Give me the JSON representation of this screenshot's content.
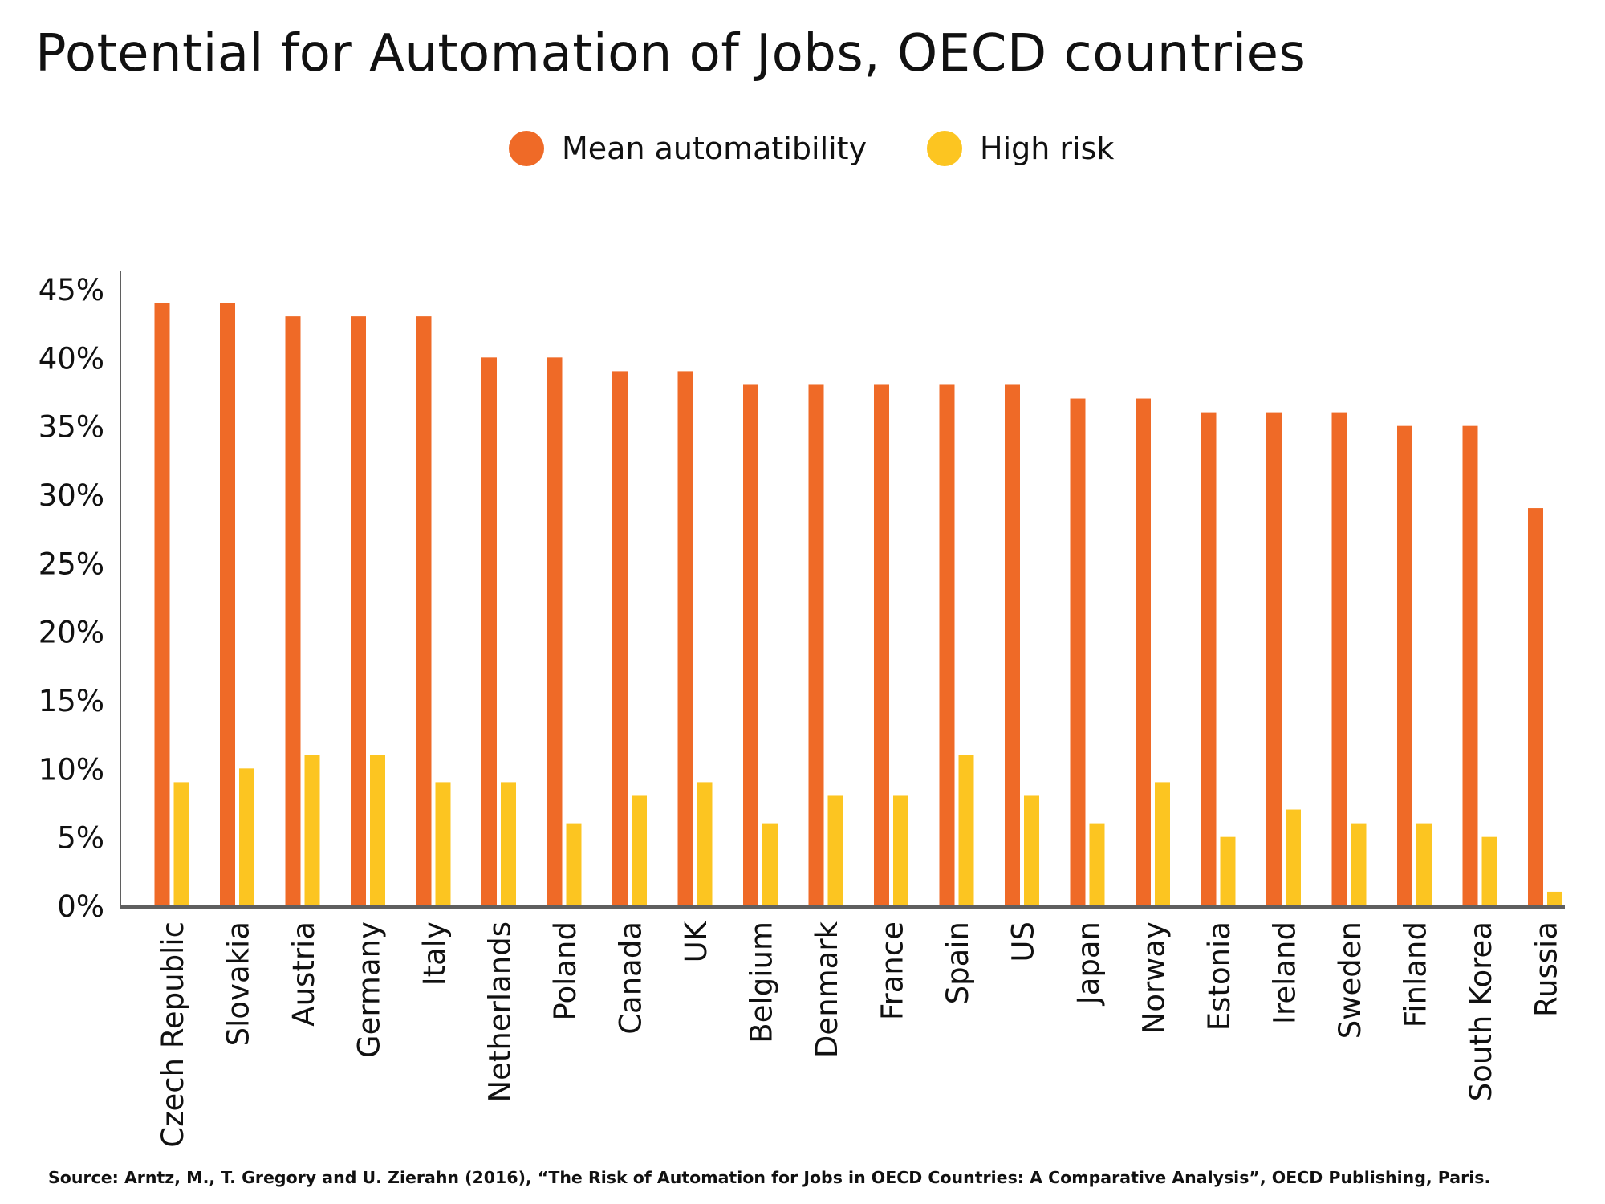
{
  "colors": {
    "mean": "#ef6a27",
    "high": "#fcc521",
    "axis": "#5f5f5f",
    "text": "#111111"
  },
  "title": "Potential for Automation of Jobs, OECD countries",
  "source": "Source:  Arntz, M., T. Gregory and U. Zierahn (2016), “The Risk of Automation for Jobs in OECD Countries: A Comparative Analysis”, OECD Publishing, Paris.",
  "chart_data": {
    "type": "bar",
    "title": "Potential for Automation of Jobs, OECD countries",
    "xlabel": "",
    "ylabel": "",
    "ylim": [
      0,
      45
    ],
    "yticks": [
      0,
      5,
      10,
      15,
      20,
      25,
      30,
      35,
      40,
      45
    ],
    "ytick_labels": [
      "0%",
      "5%",
      "10%",
      "15%",
      "20%",
      "25%",
      "30%",
      "35%",
      "40%",
      "45%"
    ],
    "grid": false,
    "legend_position": "top-center",
    "categories": [
      "Czech Republic",
      "Slovakia",
      "Austria",
      "Germany",
      "Italy",
      "Netherlands",
      "Poland",
      "Canada",
      "UK",
      "Belgium",
      "Denmark",
      "France",
      "Spain",
      "US",
      "Japan",
      "Norway",
      "Estonia",
      "Ireland",
      "Sweden",
      "Finland",
      "South Korea",
      "Russia"
    ],
    "series": [
      {
        "name": "Mean automatibility",
        "color": "#ef6a27",
        "values": [
          44,
          44,
          43,
          43,
          43,
          40,
          40,
          39,
          39,
          38,
          38,
          38,
          38,
          38,
          37,
          37,
          36,
          36,
          36,
          35,
          35,
          29
        ]
      },
      {
        "name": "High risk",
        "color": "#fcc521",
        "values": [
          9,
          10,
          11,
          11,
          9,
          9,
          6,
          8,
          9,
          6,
          8,
          8,
          11,
          8,
          6,
          9,
          5,
          7,
          6,
          6,
          5,
          1
        ]
      }
    ]
  }
}
